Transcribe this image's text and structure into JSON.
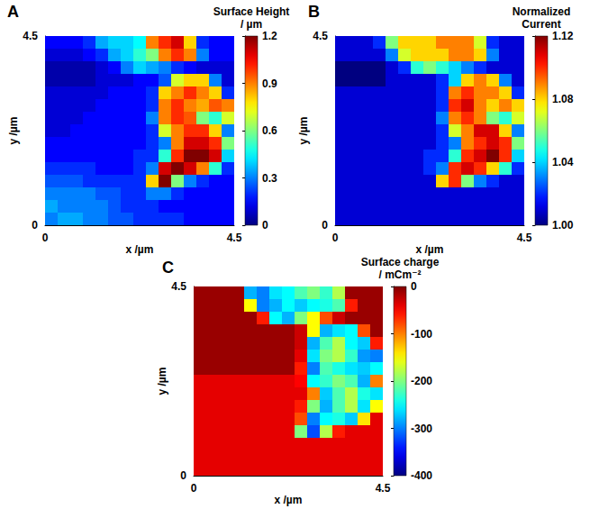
{
  "chart_data": [
    {
      "type": "heatmap",
      "title": "A",
      "x_label": "x /µm",
      "y_label": "y /µm",
      "xlim": [
        0,
        4.5
      ],
      "ylim": [
        0,
        4.5
      ],
      "xticks": [
        0,
        4.5
      ],
      "yticks": [
        0,
        4.5
      ],
      "grid": false,
      "color": "jet",
      "colorbar": {
        "title": "Surface Height / µm",
        "range": [
          0,
          1.2
        ],
        "ticks": [
          0,
          0.3,
          0.6,
          0.9,
          1.2
        ]
      },
      "x": [
        0.15,
        0.45,
        0.75,
        1.05,
        1.35,
        1.65,
        1.95,
        2.25,
        2.55,
        2.85,
        3.15,
        3.45,
        3.75,
        4.05,
        4.35
      ],
      "y": [
        4.35,
        4.05,
        3.75,
        3.45,
        3.15,
        2.85,
        2.55,
        2.25,
        1.95,
        1.65,
        1.35,
        1.05,
        0.75,
        0.45,
        0.15
      ],
      "values": [
        [
          0.15,
          0.15,
          0.15,
          0.2,
          0.35,
          0.4,
          0.4,
          0.45,
          0.9,
          1.0,
          1.1,
          0.8,
          0.2,
          0.15,
          0.15
        ],
        [
          0.1,
          0.1,
          0.1,
          0.15,
          0.2,
          0.35,
          0.4,
          0.5,
          0.6,
          0.9,
          1.0,
          0.9,
          0.3,
          0.15,
          0.15
        ],
        [
          0.05,
          0.05,
          0.05,
          0.05,
          0.1,
          0.15,
          0.3,
          0.4,
          0.35,
          0.3,
          0.2,
          0.15,
          0.1,
          0.1,
          0.1
        ],
        [
          0.05,
          0.05,
          0.05,
          0.05,
          0.1,
          0.1,
          0.1,
          0.15,
          0.15,
          0.25,
          0.7,
          0.8,
          0.8,
          0.3,
          0.1
        ],
        [
          0.1,
          0.1,
          0.1,
          0.1,
          0.1,
          0.15,
          0.15,
          0.15,
          0.2,
          0.8,
          0.9,
          1.0,
          0.9,
          0.8,
          0.2
        ],
        [
          0.1,
          0.1,
          0.1,
          0.1,
          0.15,
          0.15,
          0.15,
          0.15,
          0.2,
          0.9,
          1.0,
          0.9,
          0.85,
          0.95,
          0.9
        ],
        [
          0.1,
          0.1,
          0.1,
          0.15,
          0.15,
          0.15,
          0.15,
          0.15,
          0.3,
          0.9,
          1.0,
          0.95,
          0.6,
          0.5,
          0.7
        ],
        [
          0.1,
          0.1,
          0.15,
          0.15,
          0.15,
          0.15,
          0.15,
          0.15,
          0.2,
          0.7,
          0.9,
          1.0,
          1.0,
          0.8,
          0.3
        ],
        [
          0.15,
          0.15,
          0.15,
          0.15,
          0.15,
          0.15,
          0.15,
          0.15,
          0.2,
          0.3,
          0.9,
          1.1,
          1.1,
          1.0,
          0.6
        ],
        [
          0.15,
          0.15,
          0.15,
          0.15,
          0.15,
          0.15,
          0.15,
          0.2,
          0.2,
          0.5,
          1.0,
          1.2,
          1.2,
          1.1,
          0.4
        ],
        [
          0.2,
          0.2,
          0.2,
          0.2,
          0.15,
          0.15,
          0.15,
          0.2,
          0.3,
          1.1,
          1.2,
          1.1,
          0.9,
          0.5,
          0.2
        ],
        [
          0.25,
          0.25,
          0.25,
          0.2,
          0.2,
          0.2,
          0.2,
          0.2,
          0.8,
          1.2,
          0.6,
          0.3,
          0.2,
          0.15,
          0.15
        ],
        [
          0.3,
          0.3,
          0.3,
          0.3,
          0.25,
          0.25,
          0.2,
          0.2,
          0.3,
          0.3,
          0.2,
          0.15,
          0.15,
          0.15,
          0.15
        ],
        [
          0.35,
          0.3,
          0.3,
          0.3,
          0.3,
          0.25,
          0.2,
          0.2,
          0.2,
          0.15,
          0.15,
          0.15,
          0.15,
          0.15,
          0.15
        ],
        [
          0.3,
          0.35,
          0.35,
          0.3,
          0.3,
          0.25,
          0.25,
          0.2,
          0.2,
          0.2,
          0.2,
          0.15,
          0.15,
          0.15,
          0.15
        ]
      ]
    },
    {
      "type": "heatmap",
      "title": "B",
      "x_label": "x /µm",
      "y_label": "y /µm",
      "xlim": [
        0,
        4.5
      ],
      "ylim": [
        0,
        4.5
      ],
      "xticks": [
        0,
        4.5
      ],
      "yticks": [
        0,
        4.5
      ],
      "grid": false,
      "color": "jet",
      "colorbar": {
        "title": "Normalized Current",
        "range": [
          1.0,
          1.12
        ],
        "ticks": [
          {
            "value": 1.0,
            "label": "1.00"
          },
          {
            "value": 1.04,
            "label": "1.04"
          },
          {
            "value": 1.08,
            "label": "1.08"
          },
          {
            "value": 1.12,
            "label": "1.12"
          }
        ]
      },
      "x": [
        0.15,
        0.45,
        0.75,
        1.05,
        1.35,
        1.65,
        1.95,
        2.25,
        2.55,
        2.85,
        3.15,
        3.45,
        3.75,
        4.05,
        4.35
      ],
      "y": [
        4.35,
        4.05,
        3.75,
        3.45,
        3.15,
        2.85,
        2.55,
        2.25,
        1.95,
        1.65,
        1.35,
        1.05,
        0.75,
        0.45,
        0.15
      ],
      "values": [
        [
          1.01,
          1.01,
          1.01,
          1.02,
          1.06,
          1.08,
          1.08,
          1.08,
          1.09,
          1.09,
          1.09,
          1.07,
          1.02,
          1.01,
          1.01
        ],
        [
          1.01,
          1.01,
          1.01,
          1.01,
          1.03,
          1.07,
          1.08,
          1.08,
          1.08,
          1.09,
          1.09,
          1.08,
          1.03,
          1.01,
          1.01
        ],
        [
          1.0,
          1.0,
          1.0,
          1.0,
          1.01,
          1.02,
          1.05,
          1.06,
          1.05,
          1.04,
          1.03,
          1.02,
          1.01,
          1.01,
          1.01
        ],
        [
          1.0,
          1.0,
          1.0,
          1.0,
          1.01,
          1.01,
          1.01,
          1.01,
          1.02,
          1.04,
          1.08,
          1.09,
          1.08,
          1.03,
          1.01
        ],
        [
          1.01,
          1.01,
          1.01,
          1.01,
          1.01,
          1.01,
          1.01,
          1.01,
          1.02,
          1.09,
          1.1,
          1.09,
          1.09,
          1.08,
          1.02
        ],
        [
          1.01,
          1.01,
          1.01,
          1.01,
          1.01,
          1.01,
          1.01,
          1.01,
          1.02,
          1.1,
          1.11,
          1.09,
          1.08,
          1.09,
          1.08
        ],
        [
          1.01,
          1.01,
          1.01,
          1.01,
          1.01,
          1.01,
          1.01,
          1.01,
          1.03,
          1.09,
          1.1,
          1.09,
          1.06,
          1.05,
          1.07
        ],
        [
          1.01,
          1.01,
          1.01,
          1.01,
          1.01,
          1.01,
          1.01,
          1.01,
          1.02,
          1.07,
          1.09,
          1.11,
          1.11,
          1.08,
          1.03
        ],
        [
          1.01,
          1.01,
          1.01,
          1.01,
          1.01,
          1.01,
          1.01,
          1.01,
          1.02,
          1.03,
          1.09,
          1.1,
          1.11,
          1.1,
          1.06
        ],
        [
          1.01,
          1.01,
          1.01,
          1.01,
          1.01,
          1.01,
          1.01,
          1.02,
          1.02,
          1.05,
          1.1,
          1.11,
          1.12,
          1.1,
          1.04
        ],
        [
          1.01,
          1.01,
          1.01,
          1.01,
          1.01,
          1.01,
          1.01,
          1.02,
          1.03,
          1.1,
          1.11,
          1.1,
          1.08,
          1.05,
          1.02
        ],
        [
          1.01,
          1.01,
          1.01,
          1.01,
          1.01,
          1.01,
          1.01,
          1.01,
          1.08,
          1.1,
          1.06,
          1.03,
          1.02,
          1.01,
          1.01
        ],
        [
          1.01,
          1.01,
          1.01,
          1.01,
          1.01,
          1.01,
          1.01,
          1.01,
          1.01,
          1.01,
          1.01,
          1.01,
          1.01,
          1.01,
          1.01
        ],
        [
          1.01,
          1.01,
          1.01,
          1.01,
          1.01,
          1.01,
          1.01,
          1.01,
          1.01,
          1.01,
          1.01,
          1.01,
          1.01,
          1.01,
          1.01
        ],
        [
          1.01,
          1.01,
          1.01,
          1.01,
          1.01,
          1.01,
          1.01,
          1.01,
          1.01,
          1.01,
          1.01,
          1.01,
          1.01,
          1.01,
          1.01
        ]
      ]
    },
    {
      "type": "heatmap",
      "title": "C",
      "x_label": "x /µm",
      "y_label": "y /µm",
      "xlim": [
        0,
        4.5
      ],
      "ylim": [
        0,
        4.5
      ],
      "xticks": [
        0,
        4.5
      ],
      "yticks": [
        0,
        4.5
      ],
      "grid": false,
      "color": "jet",
      "colorbar": {
        "title": "Surface charge / mCm⁻²",
        "range": [
          -400,
          0
        ],
        "ticks": [
          -400,
          -300,
          -200,
          -100,
          0
        ]
      },
      "x": [
        0.15,
        0.45,
        0.75,
        1.05,
        1.35,
        1.65,
        1.95,
        2.25,
        2.55,
        2.85,
        3.15,
        3.45,
        3.75,
        4.05,
        4.35
      ],
      "y": [
        4.35,
        4.05,
        3.75,
        3.45,
        3.15,
        2.85,
        2.55,
        2.25,
        1.95,
        1.65,
        1.35,
        1.05,
        0.75,
        0.45,
        0.15
      ],
      "values": [
        [
          -10,
          -10,
          -10,
          -10,
          -280,
          -300,
          -260,
          -250,
          -220,
          -200,
          -230,
          -180,
          -10,
          -10,
          -10
        ],
        [
          -10,
          -10,
          -10,
          -10,
          -150,
          -300,
          -280,
          -250,
          -270,
          -250,
          -240,
          -220,
          -60,
          -10,
          -10
        ],
        [
          -10,
          -10,
          -10,
          -10,
          -10,
          -60,
          -250,
          -280,
          -200,
          -150,
          -80,
          -30,
          -10,
          -10,
          -10
        ],
        [
          -10,
          -10,
          -10,
          -10,
          -10,
          -10,
          -10,
          -10,
          -30,
          -150,
          -280,
          -260,
          -250,
          -80,
          -10
        ],
        [
          -10,
          -10,
          -10,
          -10,
          -10,
          -10,
          -10,
          -10,
          -30,
          -280,
          -220,
          -180,
          -250,
          -270,
          -60
        ],
        [
          -10,
          -10,
          -10,
          -10,
          -10,
          -10,
          -10,
          -10,
          -40,
          -260,
          -200,
          -180,
          -230,
          -290,
          -300
        ],
        [
          -10,
          -10,
          -10,
          -10,
          -10,
          -10,
          -10,
          -10,
          -60,
          -300,
          -220,
          -240,
          -260,
          -270,
          -250
        ],
        [
          -40,
          -40,
          -40,
          -40,
          -40,
          -40,
          -40,
          -40,
          -50,
          -250,
          -230,
          -200,
          -220,
          -280,
          -100
        ],
        [
          -40,
          -40,
          -40,
          -40,
          -40,
          -40,
          -40,
          -40,
          -40,
          -100,
          -270,
          -220,
          -180,
          -240,
          -260
        ],
        [
          -40,
          -40,
          -40,
          -40,
          -40,
          -40,
          -40,
          -40,
          -60,
          -200,
          -280,
          -220,
          -180,
          -260,
          -150
        ],
        [
          -40,
          -40,
          -40,
          -40,
          -40,
          -40,
          -40,
          -40,
          -80,
          -300,
          -250,
          -240,
          -270,
          -140,
          -40
        ],
        [
          -40,
          -40,
          -40,
          -40,
          -40,
          -40,
          -40,
          -40,
          -200,
          -320,
          -180,
          -60,
          -40,
          -40,
          -40
        ],
        [
          -40,
          -40,
          -40,
          -40,
          -40,
          -40,
          -40,
          -40,
          -40,
          -40,
          -40,
          -40,
          -40,
          -40,
          -40
        ],
        [
          -40,
          -40,
          -40,
          -40,
          -40,
          -40,
          -40,
          -40,
          -40,
          -40,
          -40,
          -40,
          -40,
          -40,
          -40
        ],
        [
          -40,
          -40,
          -40,
          -40,
          -40,
          -40,
          -40,
          -40,
          -40,
          -40,
          -40,
          -40,
          -40,
          -40,
          -40
        ]
      ]
    }
  ]
}
